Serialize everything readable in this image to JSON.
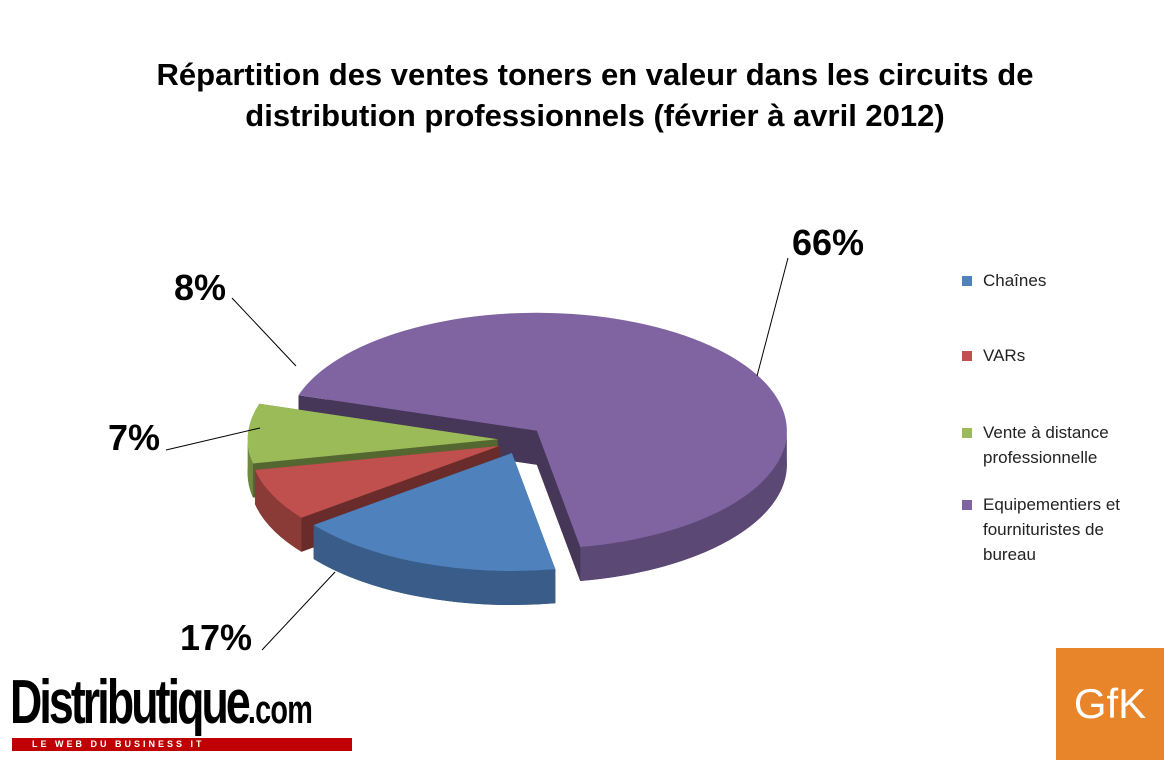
{
  "chart_data": {
    "type": "pie3d",
    "title": "Répartition des ventes toners en valeur dans les circuits de distribution professionnels (février à avril 2012)",
    "categories": [
      "Chaînes",
      "VARs",
      "Vente à distance professionnelle",
      "Equipementiers et fournituristes de bureau"
    ],
    "values": [
      17,
      7,
      8,
      66
    ],
    "value_labels": [
      "17%",
      "7%",
      "8%",
      "66%"
    ],
    "colors": [
      "#4f81bd",
      "#c0504d",
      "#9bbb59",
      "#8064a2"
    ],
    "legend": "right"
  },
  "logos": {
    "left": "Distributique",
    "left_suffix": ".com",
    "left_tagline": "LE WEB DU BUSINESS IT",
    "right": "GfK"
  }
}
